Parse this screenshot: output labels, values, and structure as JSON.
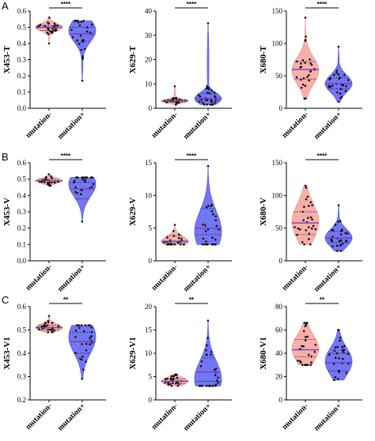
{
  "colors": {
    "mutation_neg": "#f4a19a",
    "mutation_pos": "#5a5ef0",
    "median_line": "#7b3fb8"
  },
  "panel_letters": [
    "A",
    "B",
    "C"
  ],
  "chart_data": [
    {
      "type": "violin",
      "id": "A1",
      "row": 0,
      "col": 0,
      "ylabel": "X453-T",
      "ylim": [
        0,
        0.6
      ],
      "yticks": [
        "0.0",
        "0.1",
        "0.2",
        "0.3",
        "0.4",
        "0.5",
        "0.6"
      ],
      "categories": [
        "mutation-",
        "mutation+"
      ],
      "significance": "****",
      "series": [
        {
          "name": "mutation-",
          "min": 0.4,
          "max": 0.56,
          "median": 0.5,
          "q1": 0.48,
          "q3": 0.51,
          "peak": 0.5
        },
        {
          "name": "mutation+",
          "min": 0.17,
          "max": 0.54,
          "median": 0.46,
          "q1": 0.41,
          "q3": 0.5,
          "peak": 0.48
        }
      ]
    },
    {
      "type": "violin",
      "id": "A2",
      "row": 0,
      "col": 1,
      "ylabel": "X629-T",
      "ylim": [
        0,
        40
      ],
      "yticks": [
        "0",
        "10",
        "20",
        "30",
        "40"
      ],
      "categories": [
        "mutation-",
        "mutation+"
      ],
      "significance": "****",
      "series": [
        {
          "name": "mutation-",
          "min": 1.5,
          "max": 9,
          "median": 3,
          "q1": 2.5,
          "q3": 3.5,
          "peak": 3
        },
        {
          "name": "mutation+",
          "min": 1.5,
          "max": 35,
          "median": 4,
          "q1": 3,
          "q3": 6,
          "peak": 4
        }
      ]
    },
    {
      "type": "violin",
      "id": "A3",
      "row": 0,
      "col": 2,
      "ylabel": "X680-T",
      "ylim": [
        0,
        150
      ],
      "yticks": [
        "0",
        "50",
        "100",
        "150"
      ],
      "categories": [
        "mutation-",
        "mutation+"
      ],
      "significance": "****",
      "series": [
        {
          "name": "mutation-",
          "min": 15,
          "max": 140,
          "median": 60,
          "q1": 45,
          "q3": 72,
          "peak": 58
        },
        {
          "name": "mutation+",
          "min": 10,
          "max": 95,
          "median": 38,
          "q1": 30,
          "q3": 47,
          "peak": 38
        }
      ]
    },
    {
      "type": "violin",
      "id": "B1",
      "row": 1,
      "col": 0,
      "ylabel": "X453-V",
      "ylim": [
        0,
        0.6
      ],
      "yticks": [
        "0.0",
        "0.1",
        "0.2",
        "0.3",
        "0.4",
        "0.5",
        "0.6"
      ],
      "categories": [
        "mutation-",
        "mutation+"
      ],
      "significance": "****",
      "series": [
        {
          "name": "mutation-",
          "min": 0.46,
          "max": 0.53,
          "median": 0.49,
          "q1": 0.48,
          "q3": 0.5,
          "peak": 0.49
        },
        {
          "name": "mutation+",
          "min": 0.24,
          "max": 0.51,
          "median": 0.44,
          "q1": 0.38,
          "q3": 0.48,
          "peak": 0.47
        }
      ]
    },
    {
      "type": "violin",
      "id": "B2",
      "row": 1,
      "col": 1,
      "ylabel": "X629-V",
      "ylim": [
        0,
        15
      ],
      "yticks": [
        "0",
        "5",
        "10",
        "15"
      ],
      "categories": [
        "mutation-",
        "mutation+"
      ],
      "significance": "****",
      "series": [
        {
          "name": "mutation-",
          "min": 2.5,
          "max": 5.5,
          "median": 3,
          "q1": 2.8,
          "q3": 3.8,
          "peak": 3
        },
        {
          "name": "mutation+",
          "min": 2.5,
          "max": 14.5,
          "median": 5,
          "q1": 4,
          "q3": 8,
          "peak": 4.5
        }
      ]
    },
    {
      "type": "violin",
      "id": "B3",
      "row": 1,
      "col": 2,
      "ylabel": "X680-V",
      "ylim": [
        0,
        150
      ],
      "yticks": [
        "0",
        "50",
        "100",
        "150"
      ],
      "categories": [
        "mutation-",
        "mutation+"
      ],
      "significance": "****",
      "series": [
        {
          "name": "mutation-",
          "min": 25,
          "max": 115,
          "median": 58,
          "q1": 40,
          "q3": 75,
          "peak": 60
        },
        {
          "name": "mutation+",
          "min": 15,
          "max": 85,
          "median": 35,
          "q1": 28,
          "q3": 45,
          "peak": 35
        }
      ]
    },
    {
      "type": "violin",
      "id": "C1",
      "row": 2,
      "col": 0,
      "ylabel": "X453-V1",
      "ylim": [
        0.2,
        0.6
      ],
      "yticks": [
        "0.2",
        "0.3",
        "0.4",
        "0.5",
        "0.6"
      ],
      "categories": [
        "mutation-",
        "mutation+"
      ],
      "significance": "**",
      "series": [
        {
          "name": "mutation-",
          "min": 0.49,
          "max": 0.56,
          "median": 0.51,
          "q1": 0.5,
          "q3": 0.52,
          "peak": 0.51
        },
        {
          "name": "mutation+",
          "min": 0.29,
          "max": 0.52,
          "median": 0.45,
          "q1": 0.4,
          "q3": 0.49,
          "peak": 0.47
        }
      ]
    },
    {
      "type": "violin",
      "id": "C2",
      "row": 2,
      "col": 1,
      "ylabel": "X629-V1",
      "ylim": [
        0,
        20
      ],
      "yticks": [
        "0",
        "5",
        "10",
        "15",
        "20"
      ],
      "categories": [
        "mutation-",
        "mutation+"
      ],
      "significance": "**",
      "series": [
        {
          "name": "mutation-",
          "min": 3,
          "max": 5.5,
          "median": 4,
          "q1": 3.5,
          "q3": 4.5,
          "peak": 4
        },
        {
          "name": "mutation+",
          "min": 3,
          "max": 17,
          "median": 6,
          "q1": 4,
          "q3": 9,
          "peak": 4.5
        }
      ]
    },
    {
      "type": "violin",
      "id": "C3",
      "row": 2,
      "col": 2,
      "ylabel": "X680-V1",
      "ylim": [
        0,
        80
      ],
      "yticks": [
        "0",
        "20",
        "40",
        "60",
        "80"
      ],
      "categories": [
        "mutation-",
        "mutation+"
      ],
      "significance": "**",
      "series": [
        {
          "name": "mutation-",
          "min": 30,
          "max": 66,
          "median": 43,
          "q1": 37,
          "q3": 52,
          "peak": 44
        },
        {
          "name": "mutation+",
          "min": 17,
          "max": 60,
          "median": 32,
          "q1": 25,
          "q3": 40,
          "peak": 33
        }
      ]
    }
  ]
}
